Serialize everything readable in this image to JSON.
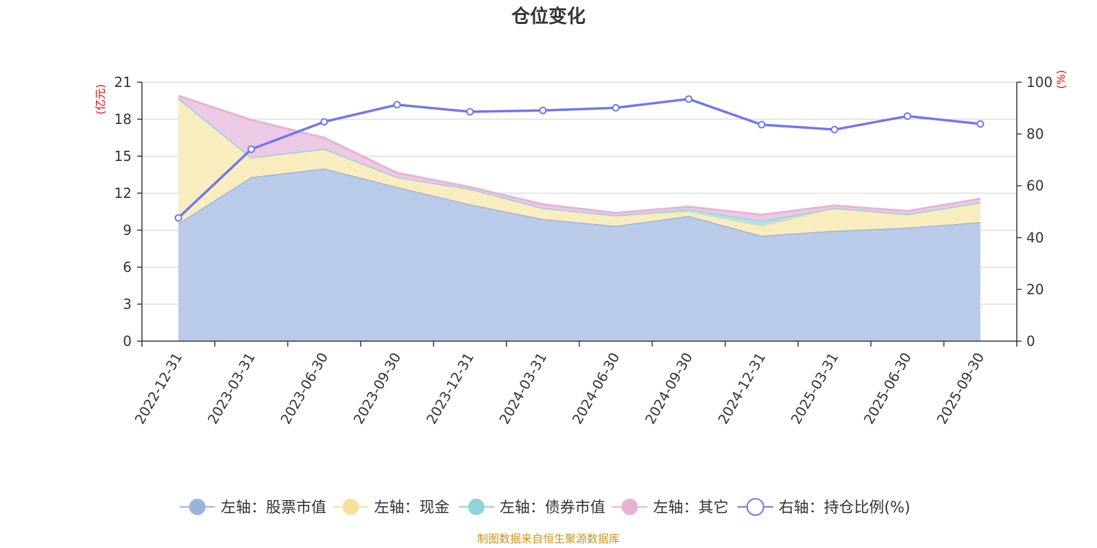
{
  "chart_data": {
    "type": "area",
    "title": "仓位变化",
    "source_note": "制图数据来自恒生聚源数据库",
    "categories": [
      "2022-12-31",
      "2023-03-31",
      "2023-06-30",
      "2023-09-30",
      "2023-12-31",
      "2024-03-31",
      "2024-06-30",
      "2024-09-30",
      "2024-12-31",
      "2025-03-31",
      "2025-06-30",
      "2025-09-30"
    ],
    "left_axis": {
      "unit": "(亿元)",
      "ticks": [
        0,
        3,
        6,
        9,
        12,
        15,
        18,
        21
      ],
      "ylim": [
        0,
        21
      ]
    },
    "right_axis": {
      "unit": "(%)",
      "ticks": [
        0,
        20,
        40,
        60,
        80,
        100
      ],
      "ylim": [
        0,
        100
      ]
    },
    "stacked_series": [
      {
        "name": "左轴：股票市值",
        "color": "#9ab3de",
        "fill": "#b9cbe9",
        "values": [
          9.55,
          13.3,
          14.0,
          12.5,
          11.1,
          9.9,
          9.35,
          10.15,
          8.55,
          8.95,
          9.2,
          9.65
        ]
      },
      {
        "name": "左轴：现金",
        "color": "#f5e29a",
        "fill": "#f9ecbf",
        "values": [
          10.15,
          1.6,
          1.6,
          0.8,
          1.25,
          0.9,
          0.85,
          0.35,
          0.8,
          1.85,
          1.1,
          1.6
        ]
      },
      {
        "name": "左轴：债券市值",
        "color": "#8fd4d6",
        "fill": "#b2e2e4",
        "values": [
          0,
          0,
          0,
          0,
          0,
          0,
          0,
          0.2,
          0.4,
          0,
          0,
          0
        ]
      },
      {
        "name": "左轴：其它",
        "color": "#e6b3d8",
        "fill": "#ecc9e5",
        "values": [
          0.2,
          3.05,
          0.9,
          0.35,
          0.15,
          0.3,
          0.2,
          0.2,
          0.5,
          0.2,
          0.25,
          0.3
        ]
      }
    ],
    "line_series": {
      "name": "右轴：持仓比例(%)",
      "color": "#6f76ef",
      "values": [
        47.6,
        74.1,
        84.7,
        91.3,
        88.6,
        89.1,
        90.1,
        93.5,
        83.6,
        81.7,
        86.9,
        83.9
      ]
    },
    "legend_position": "bottom",
    "grid": true
  }
}
